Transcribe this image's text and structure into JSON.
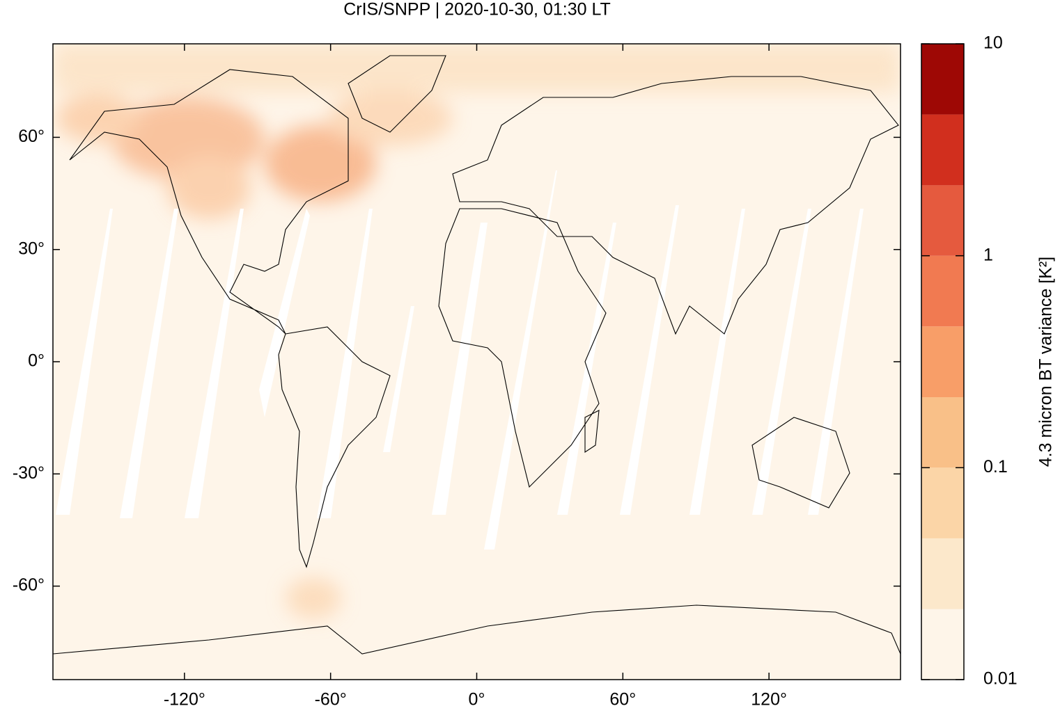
{
  "chart_data": {
    "type": "map",
    "title": "CrIS/SNPP | 2020-10-30, 01:30 LT",
    "xlim": [
      -174,
      174
    ],
    "ylim": [
      -85,
      85
    ],
    "xticks": [
      {
        "value": -120,
        "label": "-120°"
      },
      {
        "value": -60,
        "label": "-60°"
      },
      {
        "value": 0,
        "label": "0°"
      },
      {
        "value": 60,
        "label": "60°"
      },
      {
        "value": 120,
        "label": "120°"
      }
    ],
    "yticks": [
      {
        "value": -60,
        "label": "-60°"
      },
      {
        "value": -30,
        "label": "-30°"
      },
      {
        "value": 0,
        "label": "0°"
      },
      {
        "value": 30,
        "label": "30°"
      },
      {
        "value": 60,
        "label": "60°"
      }
    ],
    "colorbar": {
      "label": "4.3 micron BT variance [K²]",
      "log": true,
      "lim": [
        0.01,
        10
      ],
      "ticks": [
        0.01,
        0.1,
        1,
        10
      ],
      "levels": [
        0.01,
        0.0215,
        0.0464,
        0.1,
        0.215,
        0.464,
        1,
        2.15,
        4.64,
        10
      ],
      "colors": [
        "#fef5e9",
        "#fce8cb",
        "#fbd5a7",
        "#f9c088",
        "#f89e68",
        "#f17a51",
        "#e55a3e",
        "#d12f1e",
        "#9e0805"
      ]
    }
  }
}
